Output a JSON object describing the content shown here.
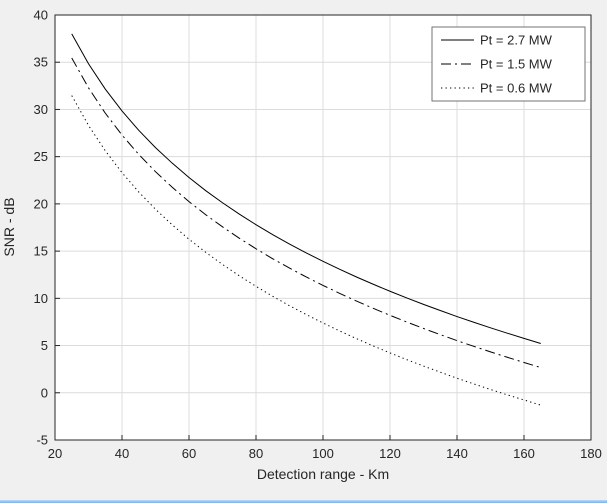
{
  "chart_data": {
    "type": "line",
    "title": "",
    "xlabel": "Detection range - Km",
    "ylabel": "SNR - dB",
    "xlim": [
      20,
      180
    ],
    "ylim": [
      -5,
      40
    ],
    "xticks": [
      20,
      40,
      60,
      80,
      100,
      120,
      140,
      160,
      180
    ],
    "yticks": [
      -5,
      0,
      5,
      10,
      15,
      20,
      25,
      30,
      35,
      40
    ],
    "grid": true,
    "legend_position": "top-right",
    "x": [
      25,
      30,
      35,
      40,
      45,
      50,
      55,
      60,
      65,
      70,
      75,
      80,
      85,
      90,
      95,
      100,
      105,
      110,
      115,
      120,
      125,
      130,
      135,
      140,
      145,
      150,
      155,
      160,
      165
    ],
    "series": [
      {
        "name": "Pt = 2.7 MW",
        "style": "solid",
        "values": [
          38.0,
          34.84,
          32.16,
          29.84,
          27.79,
          25.96,
          24.31,
          22.79,
          21.4,
          20.12,
          18.92,
          17.8,
          16.74,
          15.75,
          14.81,
          13.92,
          13.07,
          12.26,
          11.49,
          10.75,
          10.04,
          9.36,
          8.71,
          8.07,
          7.47,
          6.88,
          6.31,
          5.76,
          5.22
        ]
      },
      {
        "name": "Pt = 1.5 MW",
        "style": "dashdot",
        "values": [
          35.45,
          32.29,
          29.61,
          27.29,
          25.24,
          23.41,
          21.76,
          20.24,
          18.85,
          17.57,
          16.37,
          15.25,
          14.19,
          13.2,
          12.26,
          11.37,
          10.52,
          9.71,
          8.94,
          8.2,
          7.49,
          6.81,
          6.16,
          5.52,
          4.92,
          4.33,
          3.76,
          3.21,
          2.67
        ]
      },
      {
        "name": "Pt = 0.6 MW",
        "style": "dotted",
        "values": [
          31.47,
          28.31,
          25.63,
          23.31,
          21.26,
          19.43,
          17.78,
          16.26,
          14.87,
          13.59,
          12.39,
          11.27,
          10.21,
          9.22,
          8.28,
          7.39,
          6.54,
          5.73,
          4.96,
          4.22,
          3.51,
          2.83,
          2.18,
          1.54,
          0.94,
          0.35,
          -0.22,
          -0.76,
          -1.31
        ]
      }
    ]
  },
  "colors": {
    "figure_background": "#f0f0f0",
    "plot_background": "#ffffff",
    "grid": "#dcdcdc",
    "axis": "#262626",
    "line": "#000000",
    "legend_border": "#737373",
    "text": "#262626",
    "window_edge_blue": "#7fb2e5"
  }
}
